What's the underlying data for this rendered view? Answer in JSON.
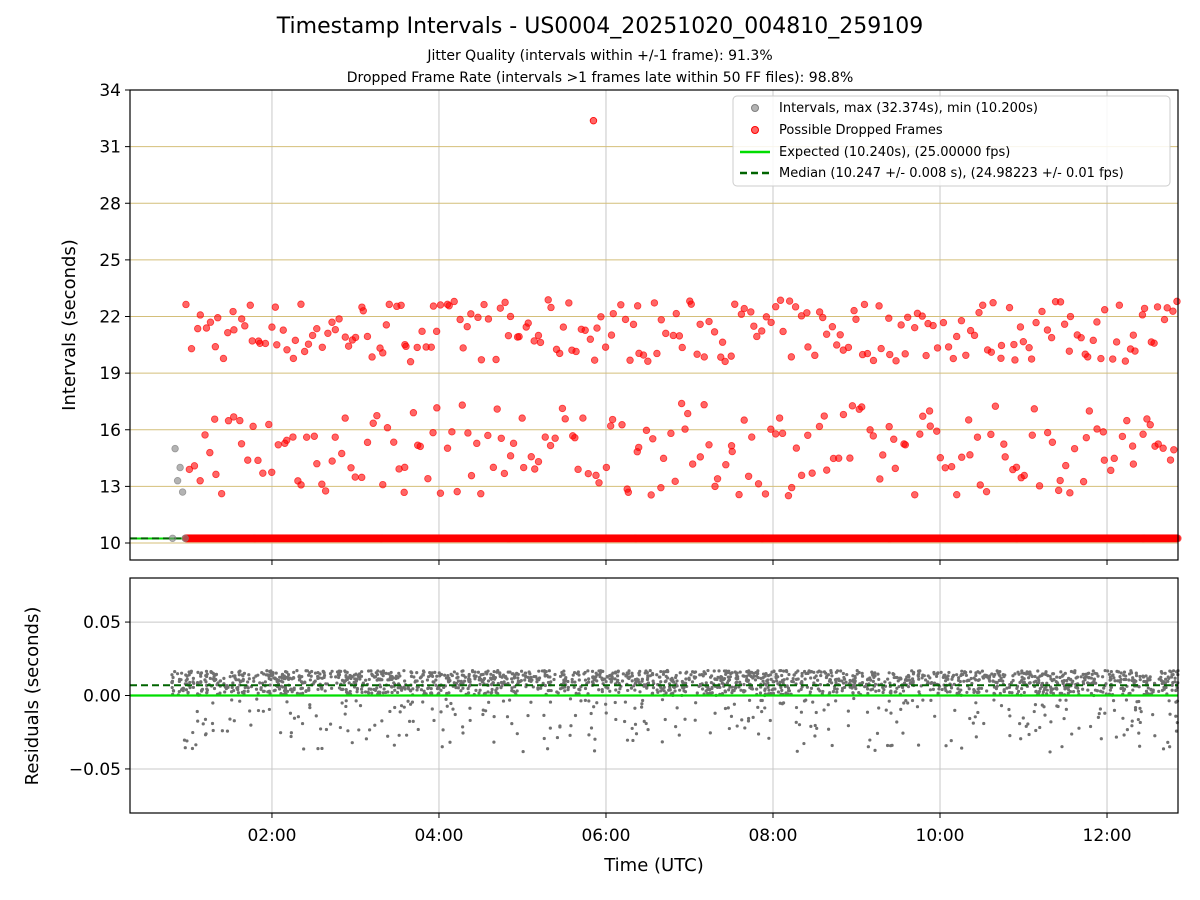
{
  "title": "Timestamp Intervals - US0004_20251020_004810_259109",
  "subtitle_jitter": "Jitter Quality (intervals within +/-1 frame): 91.3%",
  "subtitle_dropped": "Dropped Frame Rate (intervals >1 frames late within 50 FF files): 98.8%",
  "colors": {
    "normal": "#808080",
    "dropped": "#ff0000",
    "expected": "#00dd00",
    "median": "#006400",
    "hgrid_top": "#d4bf7a",
    "grid": "#c8c8c8",
    "residual": "#707070"
  },
  "chart_data": [
    {
      "type": "scatter",
      "panel": "intervals",
      "ylabel": "Intervals (seconds)",
      "xlabel": "",
      "ylim": [
        9.1,
        34
      ],
      "xlim_hours": [
        0.3,
        12.85
      ],
      "yticks": [
        10,
        13,
        16,
        19,
        22,
        25,
        28,
        31,
        34
      ],
      "legend_position": "top-right",
      "legend": {
        "intervals": "Intervals, max (32.374s), min (10.200s)",
        "dropped": "Possible Dropped Frames",
        "expected": "Expected (10.240s), (25.00000 fps)",
        "median": "Median (10.247 +/- 0.008 s), (24.98223 +/- 0.01 fps)"
      },
      "expected": 10.24,
      "median": 10.247,
      "baseline": {
        "value": 10.247,
        "x_start_hours": 0.8,
        "x_end_hours": 12.85,
        "note": "continuous dense band of intervals near 10.25 s"
      },
      "series": [
        {
          "name": "Intervals (normal)",
          "points": [
            [
              0.81,
              10.25
            ],
            [
              0.84,
              15.0
            ],
            [
              0.87,
              13.3
            ],
            [
              0.9,
              14.0
            ],
            [
              0.93,
              12.7
            ],
            [
              0.96,
              10.25
            ]
          ]
        },
        {
          "name": "Possible Dropped Frames",
          "outlier": [
            5.85,
            32.374
          ],
          "band_high_y": [
            19.6,
            22.9
          ],
          "band_low_y": [
            12.5,
            17.4
          ],
          "x_range_hours": [
            0.97,
            12.85
          ],
          "count_high": 230,
          "count_low": 200,
          "seed": 7
        }
      ]
    },
    {
      "type": "scatter",
      "panel": "residuals",
      "ylabel": "Residuals (seconds)",
      "xlabel": "Time (UTC)",
      "ylim": [
        -0.08,
        0.08
      ],
      "yticks": [
        0.05,
        0.0,
        -0.05
      ],
      "ytick_labels": [
        "0.05",
        "0.00",
        "−0.05"
      ],
      "xticks_hours": [
        2,
        4,
        6,
        8,
        10,
        12
      ],
      "xtick_labels": [
        "02:00",
        "04:00",
        "06:00",
        "08:00",
        "10:00",
        "12:00"
      ],
      "expected": 0.0,
      "median": 0.007,
      "series": [
        {
          "name": "Residuals",
          "x_range_hours": [
            0.8,
            12.85
          ],
          "dense_band": [
            0.0,
            0.017
          ],
          "count_dense": 1800,
          "sparse_range": [
            -0.04,
            -0.002
          ],
          "count_sparse": 300,
          "seed": 11
        }
      ]
    }
  ]
}
